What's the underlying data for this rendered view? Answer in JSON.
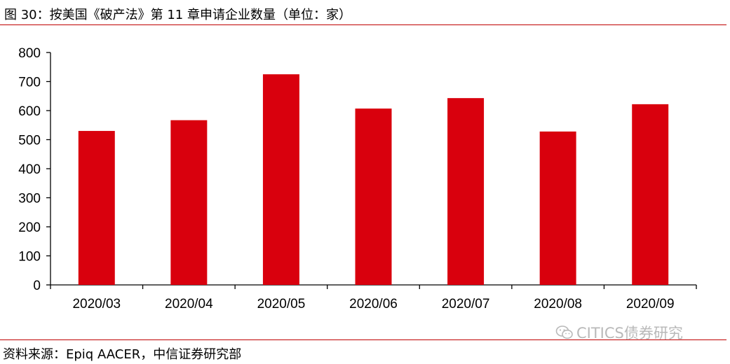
{
  "header": {
    "title": "图 30：按美国《破产法》第 11 章申请企业数量（单位：家）"
  },
  "footer": {
    "source": "资料来源：Epiq AACER，中信证券研究部",
    "watermark": "CITICS债券研究"
  },
  "chart_data": {
    "type": "bar",
    "title": "",
    "xlabel": "",
    "ylabel": "",
    "categories": [
      "2020/03",
      "2020/04",
      "2020/05",
      "2020/06",
      "2020/07",
      "2020/08",
      "2020/09"
    ],
    "values": [
      530,
      567,
      725,
      607,
      643,
      528,
      622
    ],
    "ylim": [
      0,
      800
    ],
    "yticks": [
      0,
      100,
      200,
      300,
      400,
      500,
      600,
      700,
      800
    ],
    "bar_color": "#d9000d",
    "grid": false,
    "legend": "none"
  }
}
